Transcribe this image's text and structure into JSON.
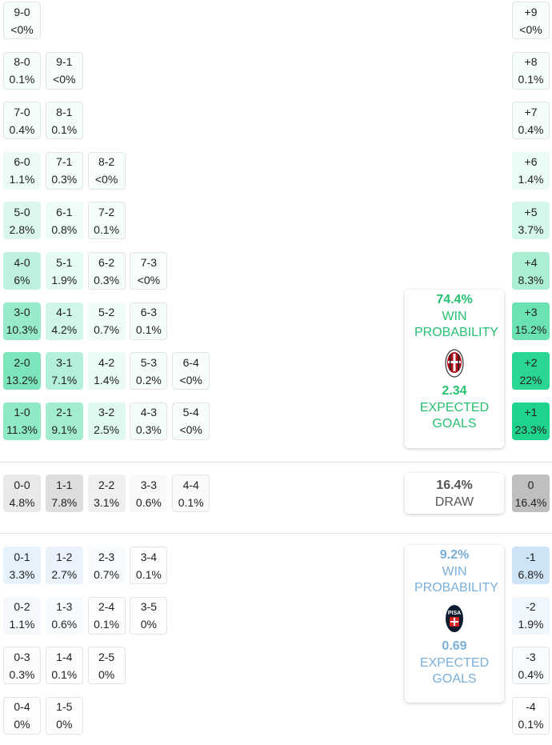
{
  "colors": {
    "home": "#1fd38c",
    "away": "#9cc8ee",
    "draw": "#bdbdbd",
    "home_text": "#26c070",
    "away_text": "#7aafda",
    "draw_text": "#555555"
  },
  "home_rows": [
    {
      "diff": "+9",
      "diff_pct": "<0%",
      "cells": [
        {
          "score": "9-0",
          "pct": "<0%"
        }
      ]
    },
    {
      "diff": "+8",
      "diff_pct": "0.1%",
      "cells": [
        {
          "score": "8-0",
          "pct": "0.1%"
        },
        {
          "score": "9-1",
          "pct": "<0%"
        }
      ]
    },
    {
      "diff": "+7",
      "diff_pct": "0.4%",
      "cells": [
        {
          "score": "7-0",
          "pct": "0.4%"
        },
        {
          "score": "8-1",
          "pct": "0.1%"
        }
      ]
    },
    {
      "diff": "+6",
      "diff_pct": "1.4%",
      "cells": [
        {
          "score": "6-0",
          "pct": "1.1%"
        },
        {
          "score": "7-1",
          "pct": "0.3%"
        },
        {
          "score": "8-2",
          "pct": "<0%"
        }
      ]
    },
    {
      "diff": "+5",
      "diff_pct": "3.7%",
      "cells": [
        {
          "score": "5-0",
          "pct": "2.8%"
        },
        {
          "score": "6-1",
          "pct": "0.8%"
        },
        {
          "score": "7-2",
          "pct": "0.1%"
        }
      ]
    },
    {
      "diff": "+4",
      "diff_pct": "8.3%",
      "cells": [
        {
          "score": "4-0",
          "pct": "6%"
        },
        {
          "score": "5-1",
          "pct": "1.9%"
        },
        {
          "score": "6-2",
          "pct": "0.3%"
        },
        {
          "score": "7-3",
          "pct": "<0%"
        }
      ]
    },
    {
      "diff": "+3",
      "diff_pct": "15.2%",
      "cells": [
        {
          "score": "3-0",
          "pct": "10.3%"
        },
        {
          "score": "4-1",
          "pct": "4.2%"
        },
        {
          "score": "5-2",
          "pct": "0.7%"
        },
        {
          "score": "6-3",
          "pct": "0.1%"
        }
      ]
    },
    {
      "diff": "+2",
      "diff_pct": "22%",
      "cells": [
        {
          "score": "2-0",
          "pct": "13.2%"
        },
        {
          "score": "3-1",
          "pct": "7.1%"
        },
        {
          "score": "4-2",
          "pct": "1.4%"
        },
        {
          "score": "5-3",
          "pct": "0.2%"
        },
        {
          "score": "6-4",
          "pct": "<0%"
        }
      ]
    },
    {
      "diff": "+1",
      "diff_pct": "23.3%",
      "cells": [
        {
          "score": "1-0",
          "pct": "11.3%"
        },
        {
          "score": "2-1",
          "pct": "9.1%"
        },
        {
          "score": "3-2",
          "pct": "2.5%"
        },
        {
          "score": "4-3",
          "pct": "0.3%"
        },
        {
          "score": "5-4",
          "pct": "<0%"
        }
      ]
    }
  ],
  "draw_row": {
    "diff": "0",
    "diff_pct": "16.4%",
    "cells": [
      {
        "score": "0-0",
        "pct": "4.8%"
      },
      {
        "score": "1-1",
        "pct": "7.8%"
      },
      {
        "score": "2-2",
        "pct": "3.1%"
      },
      {
        "score": "3-3",
        "pct": "0.6%"
      },
      {
        "score": "4-4",
        "pct": "0.1%"
      }
    ]
  },
  "away_rows": [
    {
      "diff": "-1",
      "diff_pct": "6.8%",
      "cells": [
        {
          "score": "0-1",
          "pct": "3.3%"
        },
        {
          "score": "1-2",
          "pct": "2.7%"
        },
        {
          "score": "2-3",
          "pct": "0.7%"
        },
        {
          "score": "3-4",
          "pct": "0.1%"
        }
      ]
    },
    {
      "diff": "-2",
      "diff_pct": "1.9%",
      "cells": [
        {
          "score": "0-2",
          "pct": "1.1%"
        },
        {
          "score": "1-3",
          "pct": "0.6%"
        },
        {
          "score": "2-4",
          "pct": "0.1%"
        },
        {
          "score": "3-5",
          "pct": "0%"
        }
      ]
    },
    {
      "diff": "-3",
      "diff_pct": "0.4%",
      "cells": [
        {
          "score": "0-3",
          "pct": "0.3%"
        },
        {
          "score": "1-4",
          "pct": "0.1%"
        },
        {
          "score": "2-5",
          "pct": "0%"
        }
      ]
    },
    {
      "diff": "-4",
      "diff_pct": "0.1%",
      "cells": [
        {
          "score": "0-4",
          "pct": "0%"
        },
        {
          "score": "1-5",
          "pct": "0%"
        }
      ]
    }
  ],
  "home_summary": {
    "win_pct": "74.4%",
    "win_label": "WIN PROBABILITY",
    "xg": "2.34",
    "xg_label": "EXPECTED GOALS",
    "logo": "ac-milan-crest"
  },
  "draw_summary": {
    "pct": "16.4%",
    "label": "DRAW"
  },
  "away_summary": {
    "win_pct": "9.2%",
    "win_label": "WIN PROBABILITY",
    "xg": "0.69",
    "xg_label": "EXPECTED GOALS",
    "logo": "pisa-crest"
  }
}
